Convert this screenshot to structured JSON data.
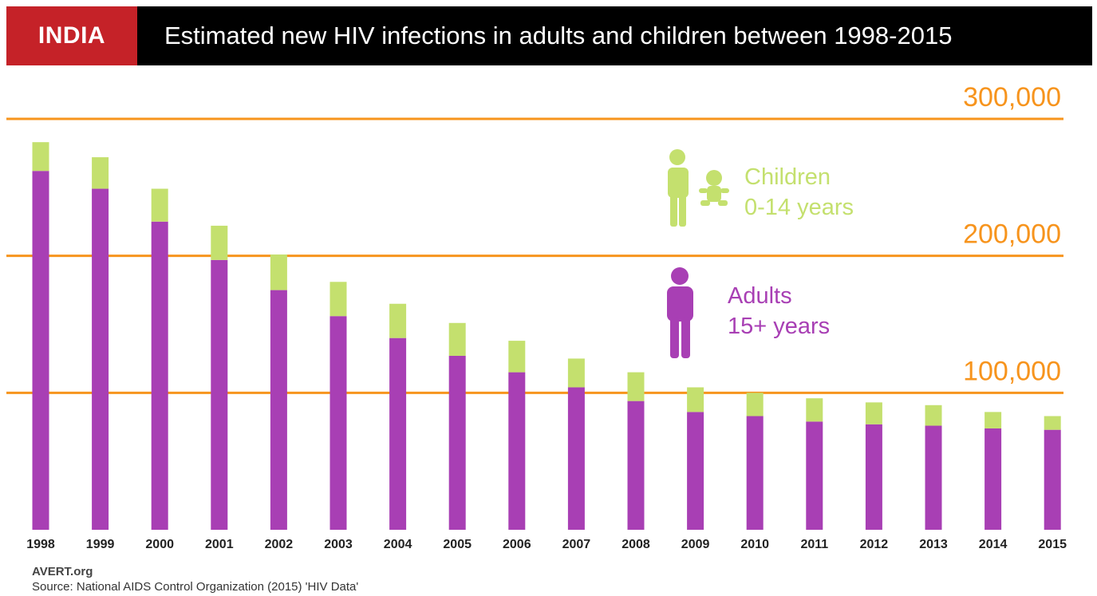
{
  "header": {
    "country": "INDIA",
    "title": "Estimated new HIV infections in adults and children between 1998-2015"
  },
  "legend": {
    "children_line1": "Children",
    "children_line2": "0-14 years",
    "adults_line1": "Adults",
    "adults_line2": "15+ years"
  },
  "footer": {
    "brand": "AVERT.org",
    "source": "Source: National AIDS Control Organization (2015) 'HIV Data'"
  },
  "colors": {
    "adults": "#a83fb4",
    "children": "#c4e06e",
    "gridline": "#f7941d",
    "header_bg": "#000000",
    "country_bg": "#c52228"
  },
  "chart_data": {
    "type": "bar",
    "stacked": true,
    "title": "Estimated new HIV infections in adults and children between 1998-2015",
    "categories": [
      "1998",
      "1999",
      "2000",
      "2001",
      "2002",
      "2003",
      "2004",
      "2005",
      "2006",
      "2007",
      "2008",
      "2009",
      "2010",
      "2011",
      "2012",
      "2013",
      "2014",
      "2015"
    ],
    "series": [
      {
        "name": "Adults 15+ years",
        "values": [
          262000,
          249000,
          225000,
          197000,
          175000,
          156000,
          140000,
          127000,
          115000,
          104000,
          94000,
          86000,
          83000,
          79000,
          77000,
          76000,
          74000,
          73000
        ]
      },
      {
        "name": "Children 0-14 years",
        "values": [
          21000,
          23000,
          24000,
          25000,
          26000,
          25000,
          25000,
          24000,
          23000,
          21000,
          21000,
          18000,
          17000,
          17000,
          16000,
          15000,
          12000,
          10000
        ]
      }
    ],
    "yticks": [
      {
        "value": 100000,
        "label": "100,000"
      },
      {
        "value": 200000,
        "label": "200,000"
      },
      {
        "value": 300000,
        "label": "300,000"
      }
    ],
    "ylim": [
      0,
      300000
    ],
    "grid": true,
    "legend_position": "right"
  }
}
